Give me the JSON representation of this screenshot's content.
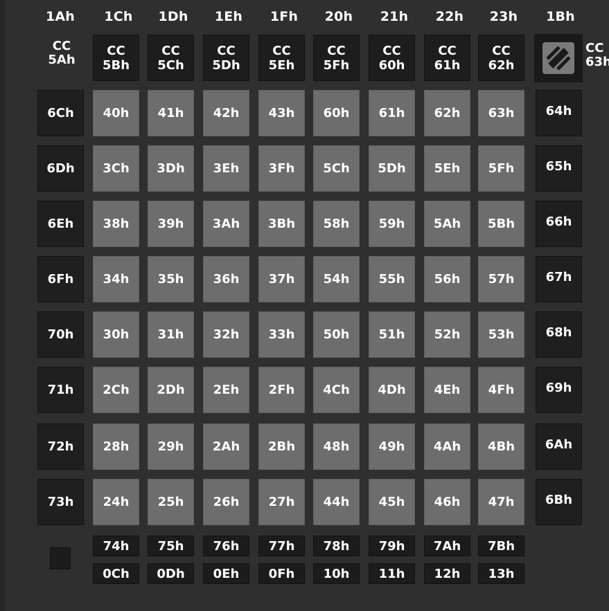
{
  "top_labels": [
    "1Ah",
    "1Ch",
    "1Dh",
    "1Eh",
    "1Fh",
    "20h",
    "21h",
    "22h",
    "23h",
    "1Bh"
  ],
  "cc_first": {
    "line1": "CC",
    "line2": "5Ah"
  },
  "cc_blocks": [
    {
      "line1": "CC",
      "line2": "5Bh"
    },
    {
      "line1": "CC",
      "line2": "5Ch"
    },
    {
      "line1": "CC",
      "line2": "5Dh"
    },
    {
      "line1": "CC",
      "line2": "5Eh"
    },
    {
      "line1": "CC",
      "line2": "5Fh"
    },
    {
      "line1": "CC",
      "line2": "60h"
    },
    {
      "line1": "CC",
      "line2": "61h"
    },
    {
      "line1": "CC",
      "line2": "62h"
    }
  ],
  "cc_last": {
    "line1": "CC",
    "line2": "63h"
  },
  "left_column": [
    "6Ch",
    "6Dh",
    "6Eh",
    "6Fh",
    "70h",
    "71h",
    "72h",
    "73h"
  ],
  "right_column": [
    "64h",
    "65h",
    "66h",
    "67h",
    "68h",
    "69h",
    "6Ah",
    "6Bh"
  ],
  "grid": [
    [
      "40h",
      "41h",
      "42h",
      "43h",
      "60h",
      "61h",
      "62h",
      "63h"
    ],
    [
      "3Ch",
      "3Dh",
      "3Eh",
      "3Fh",
      "5Ch",
      "5Dh",
      "5Eh",
      "5Fh"
    ],
    [
      "38h",
      "39h",
      "3Ah",
      "3Bh",
      "58h",
      "59h",
      "5Ah",
      "5Bh"
    ],
    [
      "34h",
      "35h",
      "36h",
      "37h",
      "54h",
      "55h",
      "56h",
      "57h"
    ],
    [
      "30h",
      "31h",
      "32h",
      "33h",
      "50h",
      "51h",
      "52h",
      "53h"
    ],
    [
      "2Ch",
      "2Dh",
      "2Eh",
      "2Fh",
      "4Ch",
      "4Dh",
      "4Eh",
      "4Fh"
    ],
    [
      "28h",
      "29h",
      "2Ah",
      "2Bh",
      "48h",
      "49h",
      "4Ah",
      "4Bh"
    ],
    [
      "24h",
      "25h",
      "26h",
      "27h",
      "44h",
      "45h",
      "46h",
      "47h"
    ]
  ],
  "bottom_row_1": [
    "74h",
    "75h",
    "76h",
    "77h",
    "78h",
    "79h",
    "7Ah",
    "7Bh"
  ],
  "bottom_row_2": [
    "0Ch",
    "0Dh",
    "0Eh",
    "0Fh",
    "10h",
    "11h",
    "12h",
    "13h"
  ],
  "icons": {
    "logo": "novation-logo-icon"
  },
  "colors": {
    "background": "#2f2f2f",
    "grid_pad": "#6d6d6d",
    "side_pad": "#1f1f1f",
    "text": "#ffffff"
  }
}
